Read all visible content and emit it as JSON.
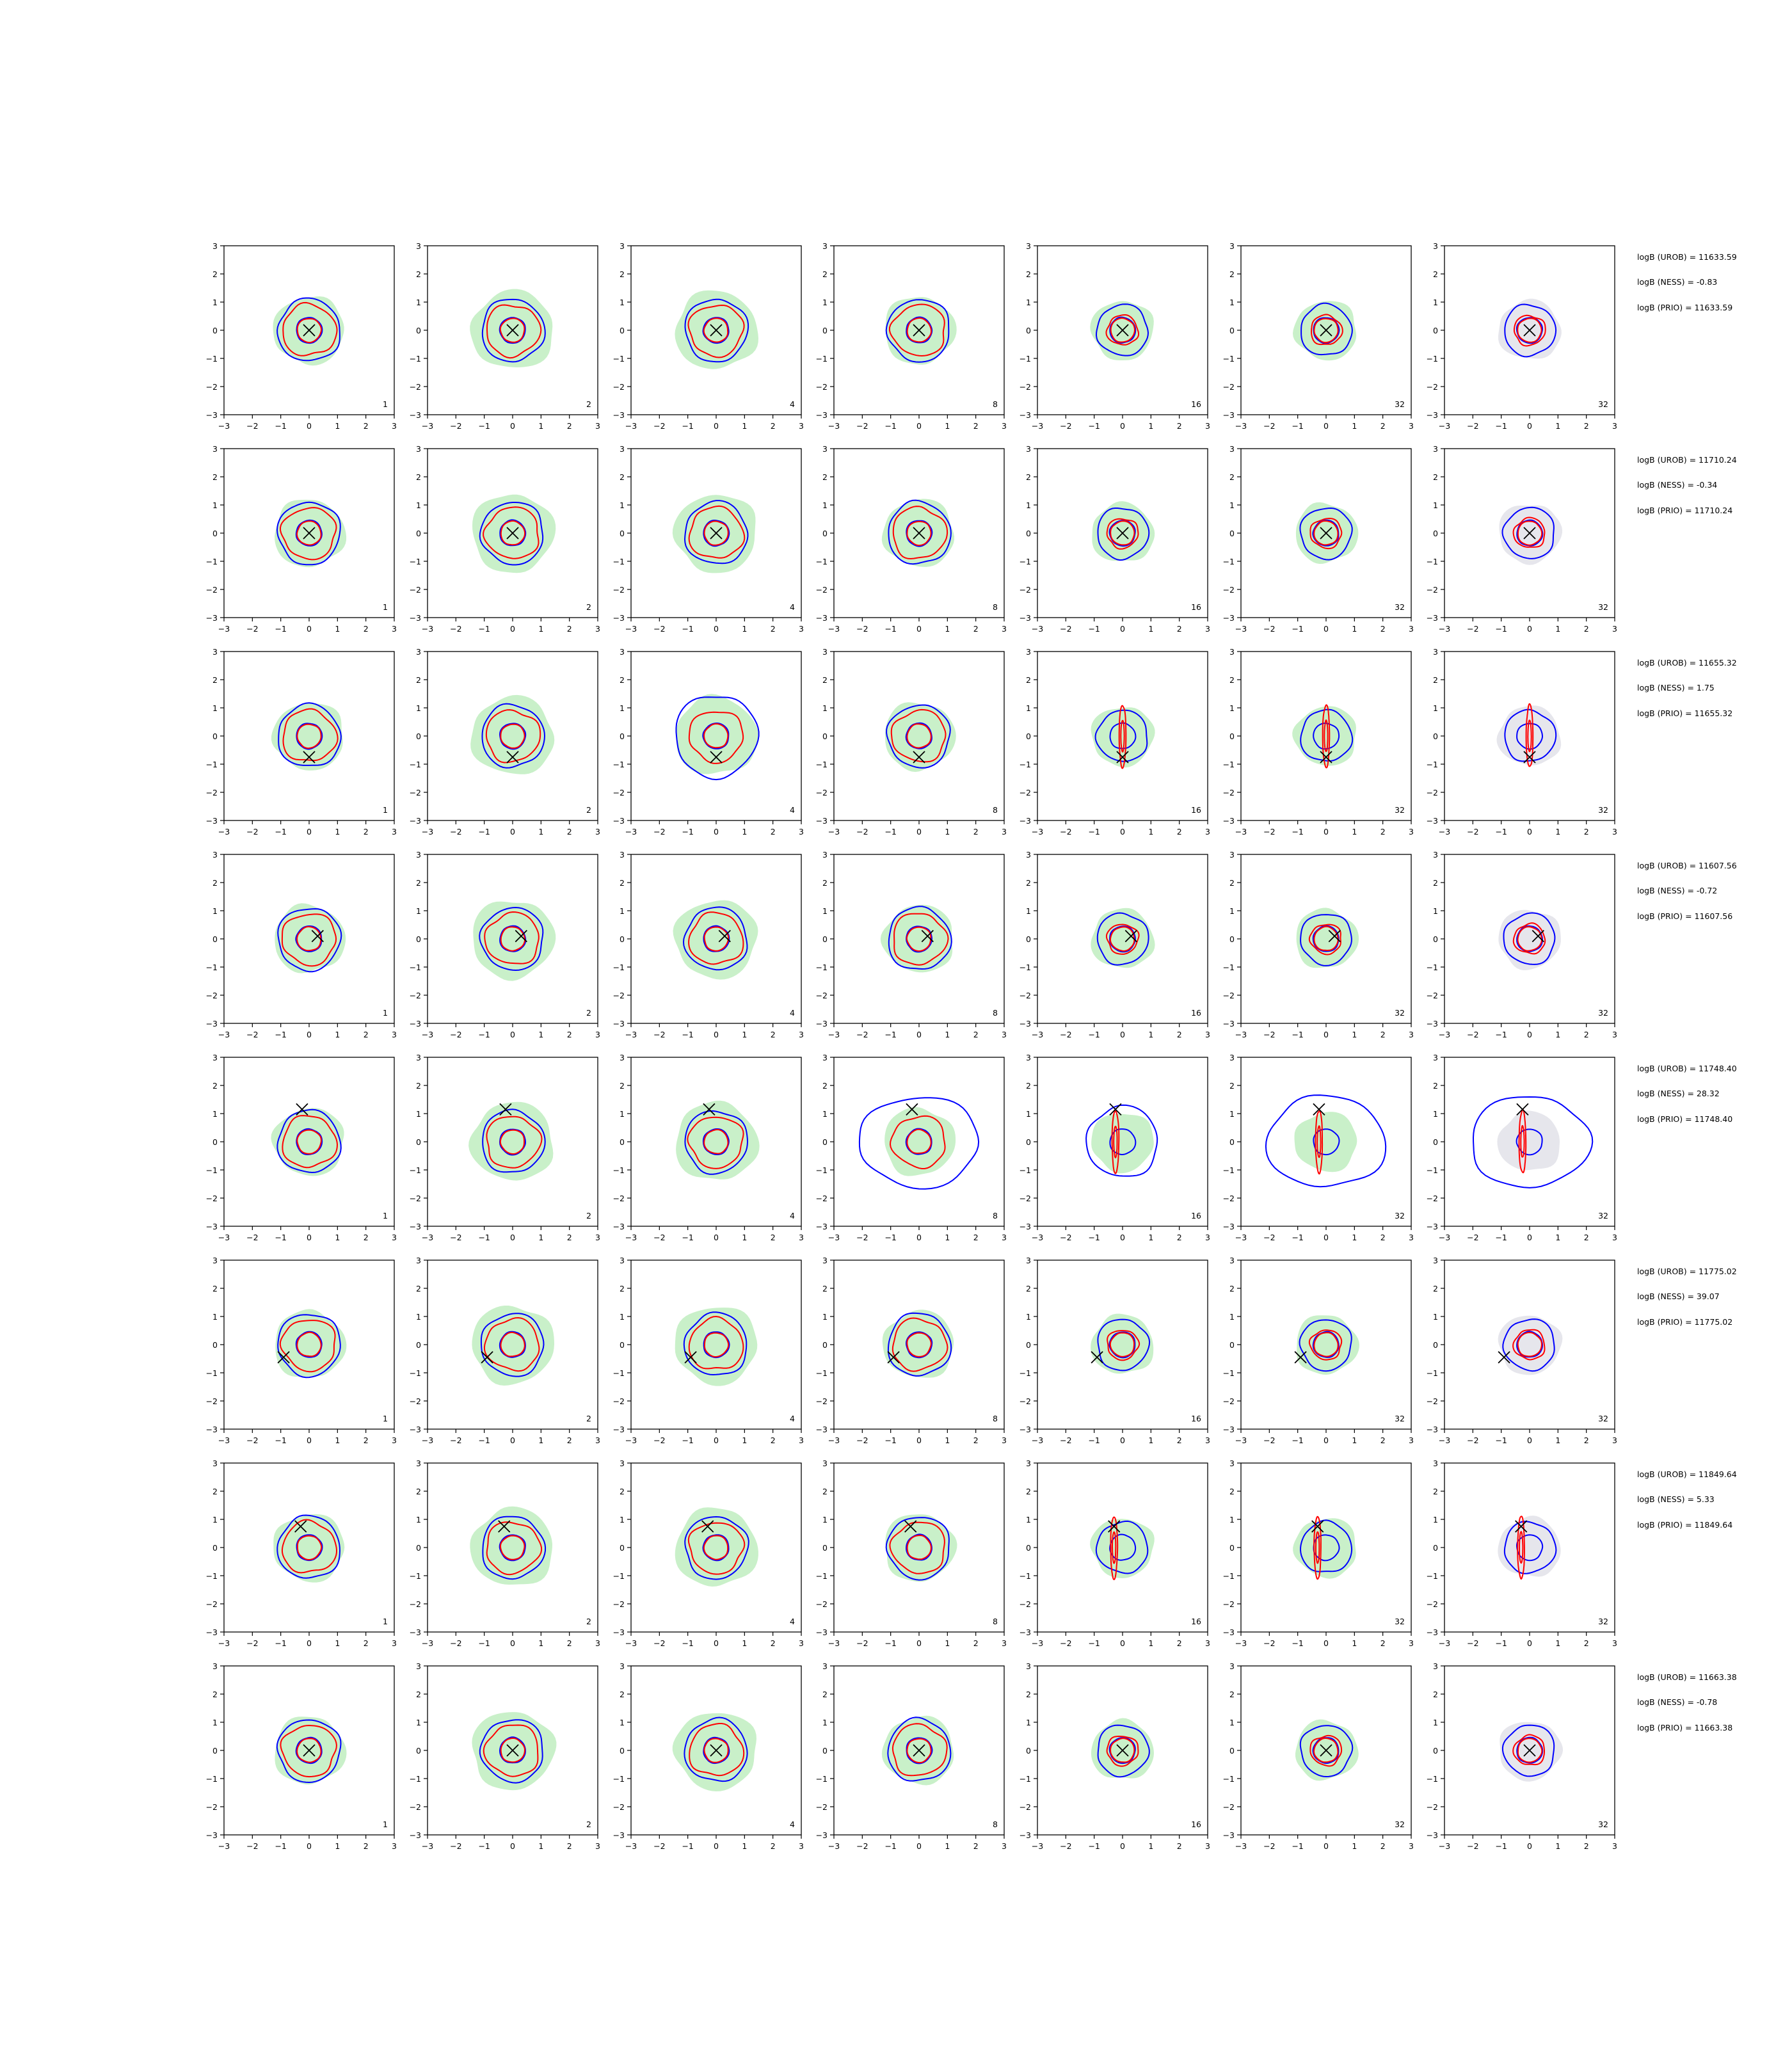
{
  "chart_data": {
    "type": "contour-grid",
    "rows": 8,
    "cols": 7,
    "xlim": [
      -3,
      3
    ],
    "ylim": [
      -3,
      3
    ],
    "ticks": [
      -3,
      -2,
      -1,
      0,
      1,
      2,
      3
    ],
    "tick_labels": [
      "−3",
      "−2",
      "−1",
      "0",
      "1",
      "2",
      "3"
    ],
    "column_badges": [
      "1",
      "2",
      "4",
      "8",
      "16",
      "32",
      "32"
    ],
    "colors": {
      "fill_green": "#c9f0c9",
      "fill_gray": "#e6e6ec",
      "contour_blue": "#0000ff",
      "contour_red": "#ff0000",
      "marker": "#000000",
      "axes": "#000000"
    },
    "marker_positions": [
      {
        "row": 1,
        "x": 0.0,
        "y": 0.0
      },
      {
        "row": 2,
        "x": 0.0,
        "y": 0.0
      },
      {
        "row": 3,
        "x": 0.0,
        "y": -0.75
      },
      {
        "row": 4,
        "x": 0.3,
        "y": 0.1
      },
      {
        "row": 5,
        "x": -0.25,
        "y": 1.15
      },
      {
        "row": 6,
        "x": -0.9,
        "y": -0.45
      },
      {
        "row": 7,
        "x": -0.3,
        "y": 0.75
      },
      {
        "row": 8,
        "x": 0.0,
        "y": 0.0
      }
    ],
    "row_labels": [
      [
        "logB (UROB) = 11633.59",
        "logB (NESS) = -0.83",
        "logB (PRIO) = 11633.59"
      ],
      [
        "logB (UROB) = 11710.24",
        "logB (NESS) = -0.34",
        "logB (PRIO) = 11710.24"
      ],
      [
        "logB (UROB) = 11655.32",
        "logB (NESS) = 1.75",
        "logB (PRIO) = 11655.32"
      ],
      [
        "logB (UROB) = 11607.56",
        "logB (NESS) = -0.72",
        "logB (PRIO) = 11607.56"
      ],
      [
        "logB (UROB) = 11748.40",
        "logB (NESS) = 28.32",
        "logB (PRIO) = 11748.40"
      ],
      [
        "logB (UROB) = 11775.02",
        "logB (NESS) = 39.07",
        "logB (PRIO) = 11775.02"
      ],
      [
        "logB (UROB) = 11849.64",
        "logB (NESS) = 5.33",
        "logB (PRIO) = 11849.64"
      ],
      [
        "logB (UROB) = 11663.38",
        "logB (NESS) = -0.78",
        "logB (PRIO) = 11663.38"
      ]
    ]
  }
}
